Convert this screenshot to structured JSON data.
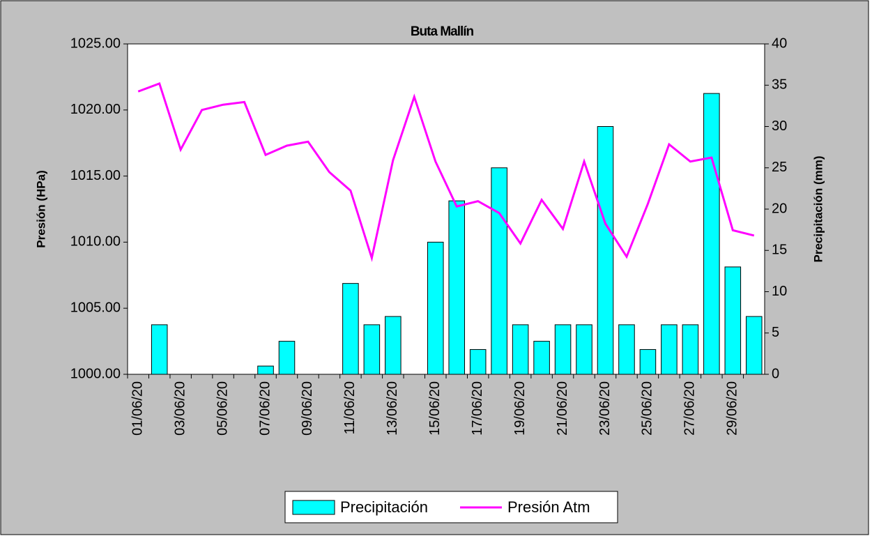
{
  "chart_data": {
    "type": "bar",
    "title": "Buta Mallín",
    "ylabel": "Presión (HPa)",
    "y2label": "Precipitación (mm)",
    "categories": [
      "01/06/20",
      null,
      "03/06/20",
      null,
      "05/06/20",
      null,
      "07/06/20",
      null,
      "09/06/20",
      null,
      "11/06/20",
      null,
      "13/06/20",
      null,
      "15/06/20",
      null,
      "17/06/20",
      null,
      "19/06/20",
      null,
      "21/06/20",
      null,
      "23/06/20",
      null,
      "25/06/20",
      null,
      "27/06/20",
      null,
      "29/06/20",
      null
    ],
    "series": [
      {
        "name": "Precipitación",
        "type": "bar",
        "axis": "y2",
        "color": "#00ffff",
        "values": [
          0,
          6,
          0,
          0,
          0,
          0,
          1,
          4,
          0,
          0,
          11,
          6,
          7,
          0,
          16,
          21,
          3,
          25,
          6,
          4,
          6,
          6,
          30,
          6,
          3,
          6,
          6,
          34,
          13,
          7
        ]
      },
      {
        "name": "Presión Atm",
        "type": "line",
        "color": "#ff00ff",
        "values": [
          1021.4,
          1022.0,
          1017.0,
          1020.0,
          1020.4,
          1020.6,
          1016.6,
          1017.3,
          1017.6,
          1015.3,
          1013.9,
          1008.8,
          1016.2,
          1021.0,
          1016.1,
          1012.7,
          1013.1,
          1012.2,
          1009.9,
          1013.2,
          1011.0,
          1016.1,
          1011.4,
          1008.9,
          1012.9,
          1017.4,
          1016.1,
          1016.4,
          1010.9,
          1010.5
        ]
      }
    ],
    "ylim": [
      1000,
      1025
    ],
    "yticks": [
      {
        "value": 1000,
        "label": "1000.00"
      },
      {
        "value": 1005,
        "label": "1005.00"
      },
      {
        "value": 1010,
        "label": "1010.00"
      },
      {
        "value": 1015,
        "label": "1015.00"
      },
      {
        "value": 1020,
        "label": "1020.00"
      },
      {
        "value": 1025,
        "label": "1025.00"
      }
    ],
    "y2lim": [
      0,
      40
    ],
    "y2ticks": [
      0,
      5,
      10,
      15,
      20,
      25,
      30,
      35,
      40
    ],
    "legend": "bottom"
  }
}
